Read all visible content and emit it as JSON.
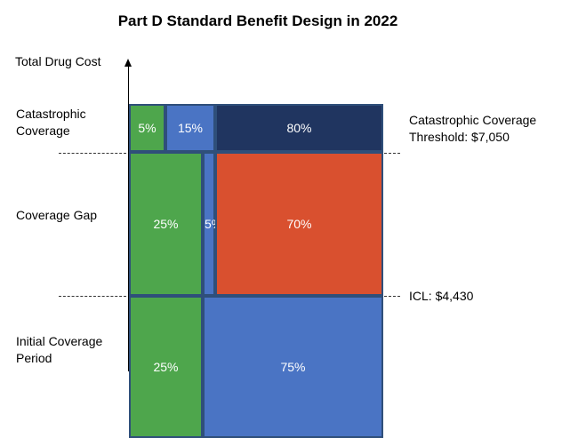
{
  "title": "Part D Standard Benefit Design in 2022",
  "axis_label": "Total Drug Cost",
  "rows": {
    "catastrophic": {
      "label_line1": "Catastrophic",
      "label_line2": "Coverage"
    },
    "gap": {
      "label": "Coverage Gap"
    },
    "initial": {
      "label_line1": "Initial Coverage",
      "label_line2": "Period"
    }
  },
  "thresholds": {
    "catastrophic_line1": "Catastrophic Coverage",
    "catastrophic_line2": "Threshold: $7,050",
    "icl": "ICL: $4,430"
  },
  "cells": {
    "catastrophic": [
      "5%",
      "15%",
      "80%"
    ],
    "gap": [
      "25%",
      "5%",
      "70%"
    ],
    "initial": [
      "25%",
      "75%"
    ]
  },
  "colors": {
    "green": "#4ea64c",
    "blue": "#4a74c4",
    "navy": "#203560",
    "orange": "#d9502f"
  }
}
